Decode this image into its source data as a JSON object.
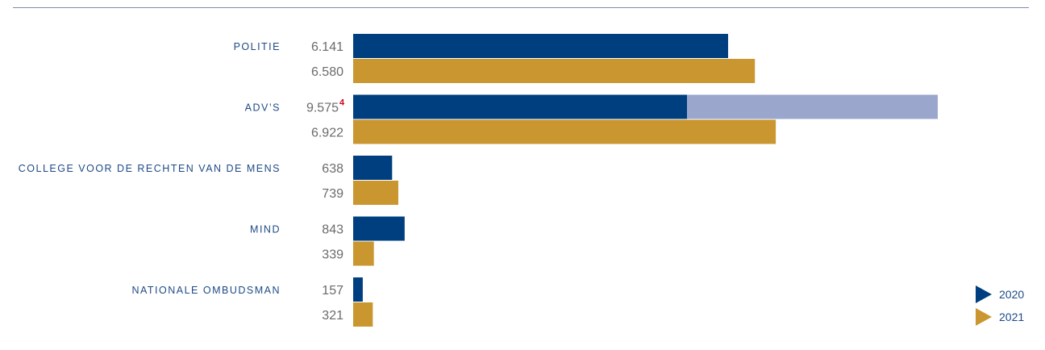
{
  "chart_data": {
    "type": "bar",
    "orientation": "horizontal",
    "categories": [
      "politie",
      "adv’s",
      "college voor de rechten van de mens",
      "mind",
      "nationale ombudsman"
    ],
    "series": [
      {
        "name": "2020",
        "values": [
          6141,
          9575,
          638,
          843,
          157
        ],
        "labels": [
          "6.141",
          "9.575",
          "638",
          "843",
          "157"
        ]
      },
      {
        "name": "2021",
        "values": [
          6580,
          6922,
          739,
          339,
          321
        ],
        "labels": [
          "6.580",
          "6.922",
          "739",
          "339",
          "321"
        ]
      }
    ],
    "segments_2020": {
      "adv’s": {
        "dark": 5470,
        "light": 4105
      }
    },
    "footnotes": [
      {
        "category": "adv’s",
        "series": "2020",
        "marker": "4"
      }
    ],
    "xlim": [
      0,
      9575
    ],
    "grid": false,
    "legend": "bottom-right",
    "colors": {
      "2020": "#003f7f",
      "2020_secondary": "#9aa6cc",
      "2021": "#c9962f",
      "category_text": "#1d4a86",
      "value_text": "#6b6b6b",
      "footnote": "#d0021b"
    }
  }
}
